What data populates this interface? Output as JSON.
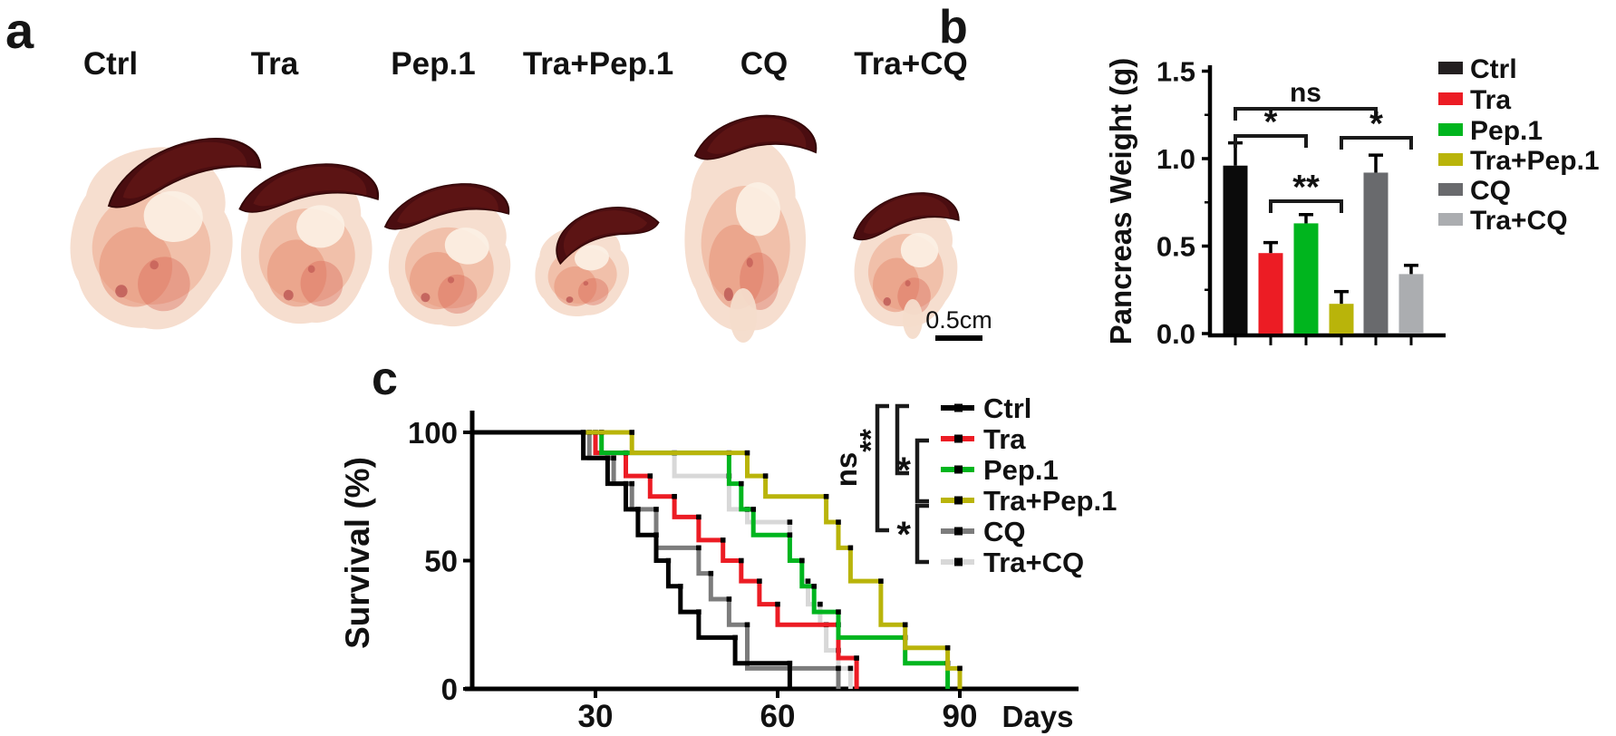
{
  "figure": {
    "background": "#ffffff"
  },
  "panel_a": {
    "label": "a",
    "specimens": [
      {
        "label": "Ctrl"
      },
      {
        "label": "Tra"
      },
      {
        "label": "Pep.1"
      },
      {
        "label": "Tra+Pep.1"
      },
      {
        "label": "CQ"
      },
      {
        "label": "Tra+CQ"
      }
    ],
    "scale_bar": {
      "text": "0.5cm"
    }
  },
  "panel_b": {
    "label": "b"
  },
  "panel_c": {
    "label": "c"
  },
  "colors": {
    "ctrl": "#0b0b0b",
    "ctrl_swatch": "#231f20",
    "tra": "#ec1c24",
    "pep1": "#00b51e",
    "tra_pep1": "#b9b40a",
    "cq_bar": "#696a6d",
    "tra_cq_bar": "#abadb0",
    "cq_curve": "#7c7c7c",
    "tra_cq_curve": "#d8d8d8",
    "spleen": "#4a0d10",
    "tumor": "#f6decf"
  },
  "chart_data": [
    {
      "panel": "b",
      "type": "bar",
      "title": "",
      "xlabel": "",
      "ylabel": "Pancreas Weight (g)",
      "ylim": [
        0,
        1.5
      ],
      "yticks": [
        "0.0",
        "0.5",
        "1.0",
        "1.5"
      ],
      "ytick_values": [
        0,
        0.5,
        1.0,
        1.5
      ],
      "minor_ticks": [
        0.25,
        0.75,
        1.25
      ],
      "grid": false,
      "legend_position": "right",
      "categories": [
        "Ctrl",
        "Tra",
        "Pep.1",
        "Tra+Pep.1",
        "CQ",
        "Tra+CQ"
      ],
      "values": [
        0.96,
        0.46,
        0.63,
        0.17,
        0.92,
        0.34
      ],
      "errors": [
        0.13,
        0.06,
        0.05,
        0.07,
        0.1,
        0.05
      ],
      "bar_colors": [
        "#0b0b0b",
        "#ec1c24",
        "#00b51e",
        "#b9b40a",
        "#696a6d",
        "#abadb0"
      ],
      "legend": [
        "Ctrl",
        "Tra",
        "Pep.1",
        "Tra+Pep.1",
        "CQ",
        "Tra+CQ"
      ],
      "legend_swatch_colors": [
        "#231f20",
        "#ec1c24",
        "#00b51e",
        "#b9b40a",
        "#696a6d",
        "#abadb0"
      ],
      "significance": [
        {
          "from": 0,
          "to": 4,
          "label": "ns",
          "y": 120
        },
        {
          "from": 0,
          "to": 2,
          "label": "*",
          "y": 150
        },
        {
          "from": 1,
          "to": 3,
          "label": "**",
          "y": 222
        },
        {
          "from": 3,
          "to": 5,
          "label": "*",
          "y": 152
        }
      ]
    },
    {
      "panel": "c",
      "type": "line",
      "subtype": "kaplan-meier-step",
      "title": "",
      "xlabel": "Days",
      "ylabel": "Survival (%)",
      "xlim": [
        10,
        95
      ],
      "ylim": [
        0,
        100
      ],
      "xticks": [
        30,
        60,
        90
      ],
      "yticks": [
        0,
        50,
        100
      ],
      "grid": false,
      "legend_position": "right",
      "series": [
        {
          "name": "Ctrl",
          "color": "#000000",
          "steps": [
            [
              28,
              90
            ],
            [
              32,
              80
            ],
            [
              35,
              70
            ],
            [
              37,
              60
            ],
            [
              40,
              50
            ],
            [
              42,
              40
            ],
            [
              44,
              30
            ],
            [
              47,
              20
            ],
            [
              53,
              10
            ],
            [
              62,
              0
            ]
          ]
        },
        {
          "name": "Tra",
          "color": "#ec1c24",
          "steps": [
            [
              30,
              92
            ],
            [
              35,
              83
            ],
            [
              39,
              75
            ],
            [
              43,
              67
            ],
            [
              47,
              58
            ],
            [
              51,
              50
            ],
            [
              54,
              42
            ],
            [
              57,
              33
            ],
            [
              60,
              25
            ],
            [
              70,
              12
            ],
            [
              73,
              0
            ]
          ]
        },
        {
          "name": "Pep.1",
          "color": "#00b51e",
          "steps": [
            [
              31,
              92
            ],
            [
              52,
              80
            ],
            [
              54,
              70
            ],
            [
              56,
              60
            ],
            [
              62,
              50
            ],
            [
              64,
              40
            ],
            [
              66,
              30
            ],
            [
              70,
              20
            ],
            [
              81,
              10
            ],
            [
              88,
              0
            ]
          ]
        },
        {
          "name": "Tra+Pep.1",
          "color": "#b9b40a",
          "steps": [
            [
              36,
              92
            ],
            [
              55,
              83
            ],
            [
              58,
              75
            ],
            [
              68,
              65
            ],
            [
              70,
              55
            ],
            [
              72,
              42
            ],
            [
              77,
              25
            ],
            [
              81,
              16
            ],
            [
              88,
              8
            ],
            [
              90,
              0
            ]
          ]
        },
        {
          "name": "CQ",
          "color": "#7c7c7c",
          "steps": [
            [
              29,
              90
            ],
            [
              33,
              80
            ],
            [
              36,
              70
            ],
            [
              40,
              55
            ],
            [
              47,
              45
            ],
            [
              49,
              35
            ],
            [
              52,
              25
            ],
            [
              55,
              8
            ],
            [
              70,
              0
            ]
          ]
        },
        {
          "name": "Tra+CQ",
          "color": "#d8d8d8",
          "steps": [
            [
              31,
              92
            ],
            [
              43,
              83
            ],
            [
              52,
              70
            ],
            [
              55,
              65
            ],
            [
              62,
              50
            ],
            [
              64,
              42
            ],
            [
              65,
              33
            ],
            [
              67,
              25
            ],
            [
              68,
              15
            ],
            [
              70,
              8
            ],
            [
              72,
              0
            ]
          ]
        }
      ],
      "significance": [
        {
          "from": 0,
          "to": 4,
          "label": "ns",
          "rotated": true
        },
        {
          "from": 0,
          "to": 2,
          "label": "**",
          "rotated": true
        },
        {
          "from": 1,
          "to": 3,
          "label": "*",
          "rotated": false
        },
        {
          "from": 3,
          "to": 5,
          "label": "*",
          "rotated": false
        }
      ]
    }
  ]
}
